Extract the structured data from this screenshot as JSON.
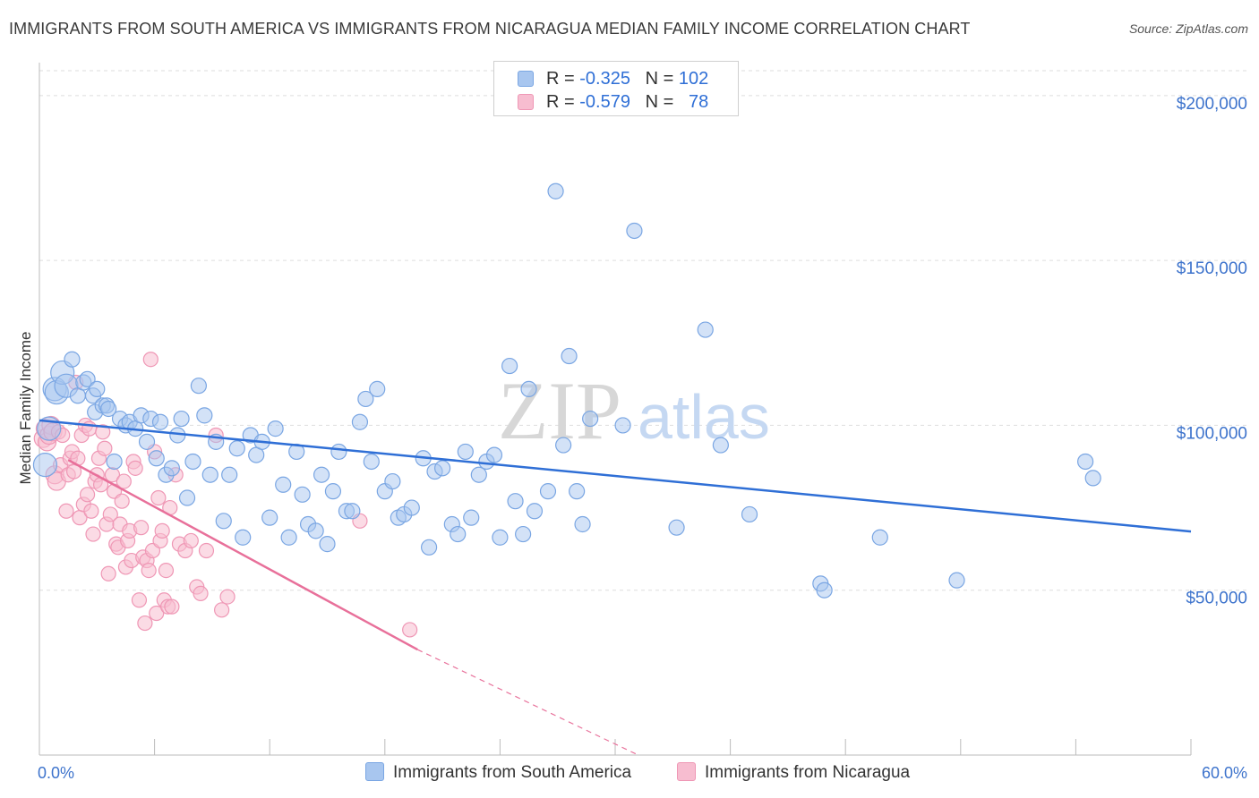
{
  "title": "IMMIGRANTS FROM SOUTH AMERICA VS IMMIGRANTS FROM NICARAGUA MEDIAN FAMILY INCOME CORRELATION CHART",
  "source": "Source: ZipAtlas.com",
  "watermark": {
    "zip": "ZIP",
    "atlas": "atlas"
  },
  "legend_top": {
    "rows": [
      {
        "r_label": "R = ",
        "r_value": "-0.325",
        "n_label": "N = ",
        "n_value": "102"
      },
      {
        "r_label": "R = ",
        "r_value": "-0.579",
        "n_label": "N = ",
        "n_value": "78"
      }
    ]
  },
  "legend_bottom": [
    "Immigrants from South America",
    "Immigrants from Nicaragua"
  ],
  "colors": {
    "blue": "#2f6fd6",
    "blue_fill": "#a8c6ef",
    "blue_edge": "#7aa6e3",
    "pink": "#e8709a",
    "pink_fill": "#f7bdd0",
    "pink_edge": "#ef97b5",
    "axis_value": "#3d73cc",
    "grid": "#dddddd"
  },
  "chart_data": {
    "type": "scatter",
    "title": "IMMIGRANTS FROM SOUTH AMERICA VS IMMIGRANTS FROM NICARAGUA MEDIAN FAMILY INCOME CORRELATION CHART",
    "xlabel": "",
    "ylabel": "Median Family Income",
    "xlim": [
      0,
      60
    ],
    "ylim": [
      0,
      210000
    ],
    "x_tick_labels": [
      "0.0%",
      "60.0%"
    ],
    "y_ticks": [
      50000,
      100000,
      150000,
      200000
    ],
    "y_tick_labels": [
      "$50,000",
      "$100,000",
      "$150,000",
      "$200,000"
    ],
    "grid": true,
    "legend_position": "top-center",
    "series": [
      {
        "name": "Immigrants from South America",
        "r": -0.325,
        "n": 102,
        "trend": {
          "x": [
            0,
            60
          ],
          "y": [
            101500,
            67800
          ]
        },
        "points": [
          [
            0.3,
            88000
          ],
          [
            0.5,
            99000
          ],
          [
            0.8,
            111000
          ],
          [
            0.9,
            110000
          ],
          [
            1.2,
            116000
          ],
          [
            1.4,
            112000
          ],
          [
            1.7,
            120000
          ],
          [
            2.0,
            109000
          ],
          [
            2.3,
            113000
          ],
          [
            2.5,
            114000
          ],
          [
            2.8,
            109000
          ],
          [
            3.0,
            111000
          ],
          [
            2.9,
            104000
          ],
          [
            3.3,
            106000
          ],
          [
            3.5,
            106000
          ],
          [
            3.6,
            105000
          ],
          [
            3.9,
            89000
          ],
          [
            4.2,
            102000
          ],
          [
            4.5,
            100000
          ],
          [
            4.7,
            101000
          ],
          [
            5.0,
            99000
          ],
          [
            5.3,
            103000
          ],
          [
            5.6,
            95000
          ],
          [
            5.8,
            102000
          ],
          [
            6.1,
            90000
          ],
          [
            6.3,
            101000
          ],
          [
            6.6,
            85000
          ],
          [
            6.9,
            87000
          ],
          [
            7.2,
            97000
          ],
          [
            7.4,
            102000
          ],
          [
            7.7,
            78000
          ],
          [
            8.0,
            89000
          ],
          [
            8.3,
            112000
          ],
          [
            8.6,
            103000
          ],
          [
            8.9,
            85000
          ],
          [
            9.2,
            95000
          ],
          [
            9.6,
            71000
          ],
          [
            9.9,
            85000
          ],
          [
            10.3,
            93000
          ],
          [
            10.6,
            66000
          ],
          [
            11.0,
            97000
          ],
          [
            11.3,
            91000
          ],
          [
            11.6,
            95000
          ],
          [
            12.0,
            72000
          ],
          [
            12.3,
            99000
          ],
          [
            12.7,
            82000
          ],
          [
            13.0,
            66000
          ],
          [
            13.4,
            92000
          ],
          [
            13.7,
            79000
          ],
          [
            14.0,
            70000
          ],
          [
            14.4,
            68000
          ],
          [
            14.7,
            85000
          ],
          [
            15.0,
            64000
          ],
          [
            15.3,
            80000
          ],
          [
            15.6,
            92000
          ],
          [
            16.0,
            74000
          ],
          [
            16.3,
            74000
          ],
          [
            16.7,
            101000
          ],
          [
            17.0,
            108000
          ],
          [
            17.3,
            89000
          ],
          [
            17.6,
            111000
          ],
          [
            18.0,
            80000
          ],
          [
            18.4,
            83000
          ],
          [
            18.7,
            72000
          ],
          [
            19.0,
            73000
          ],
          [
            19.4,
            75000
          ],
          [
            20.0,
            90000
          ],
          [
            20.3,
            63000
          ],
          [
            20.6,
            86000
          ],
          [
            21.0,
            87000
          ],
          [
            21.5,
            70000
          ],
          [
            21.8,
            67000
          ],
          [
            22.2,
            92000
          ],
          [
            22.5,
            72000
          ],
          [
            22.9,
            85000
          ],
          [
            23.3,
            89000
          ],
          [
            23.7,
            91000
          ],
          [
            24.0,
            66000
          ],
          [
            24.5,
            118000
          ],
          [
            24.8,
            77000
          ],
          [
            25.2,
            67000
          ],
          [
            25.5,
            111000
          ],
          [
            25.8,
            74000
          ],
          [
            26.5,
            80000
          ],
          [
            26.9,
            171000
          ],
          [
            27.3,
            94000
          ],
          [
            27.6,
            121000
          ],
          [
            28.0,
            80000
          ],
          [
            28.3,
            70000
          ],
          [
            28.7,
            102000
          ],
          [
            30.4,
            100000
          ],
          [
            31.0,
            159000
          ],
          [
            33.2,
            69000
          ],
          [
            34.7,
            129000
          ],
          [
            35.5,
            94000
          ],
          [
            37.0,
            73000
          ],
          [
            40.7,
            52000
          ],
          [
            40.9,
            50000
          ],
          [
            43.8,
            66000
          ],
          [
            47.8,
            53000
          ],
          [
            54.5,
            89000
          ],
          [
            54.9,
            84000
          ]
        ]
      },
      {
        "name": "Immigrants from Nicaragua",
        "r": -0.579,
        "n": 78,
        "trend": {
          "x": [
            1.5,
            19.7
          ],
          "y": [
            89500,
            32000
          ],
          "dashed_to": {
            "x": 31.2,
            "y": -2500
          }
        },
        "points": [
          [
            0.2,
            96000
          ],
          [
            0.3,
            99000
          ],
          [
            0.4,
            95000
          ],
          [
            0.5,
            97000
          ],
          [
            0.6,
            100000
          ],
          [
            0.7,
            98000
          ],
          [
            0.8,
            85000
          ],
          [
            0.9,
            83000
          ],
          [
            1.0,
            98000
          ],
          [
            1.1,
            88000
          ],
          [
            1.2,
            97000
          ],
          [
            1.4,
            74000
          ],
          [
            1.5,
            85000
          ],
          [
            1.6,
            90000
          ],
          [
            1.7,
            92000
          ],
          [
            1.8,
            86000
          ],
          [
            1.9,
            113000
          ],
          [
            2.0,
            90000
          ],
          [
            2.1,
            72000
          ],
          [
            2.2,
            97000
          ],
          [
            2.3,
            76000
          ],
          [
            2.4,
            100000
          ],
          [
            2.5,
            79000
          ],
          [
            2.6,
            99000
          ],
          [
            2.7,
            74000
          ],
          [
            2.8,
            67000
          ],
          [
            2.9,
            83000
          ],
          [
            3.0,
            85000
          ],
          [
            3.1,
            90000
          ],
          [
            3.2,
            82000
          ],
          [
            3.3,
            98000
          ],
          [
            3.4,
            93000
          ],
          [
            3.5,
            70000
          ],
          [
            3.6,
            55000
          ],
          [
            3.7,
            73000
          ],
          [
            3.8,
            85000
          ],
          [
            3.9,
            80000
          ],
          [
            4.0,
            64000
          ],
          [
            4.1,
            63000
          ],
          [
            4.2,
            70000
          ],
          [
            4.3,
            77000
          ],
          [
            4.4,
            83000
          ],
          [
            4.5,
            57000
          ],
          [
            4.6,
            65000
          ],
          [
            4.7,
            68000
          ],
          [
            4.8,
            59000
          ],
          [
            4.9,
            89000
          ],
          [
            5.0,
            87000
          ],
          [
            5.2,
            47000
          ],
          [
            5.3,
            69000
          ],
          [
            5.4,
            60000
          ],
          [
            5.5,
            40000
          ],
          [
            5.6,
            59000
          ],
          [
            5.7,
            56000
          ],
          [
            5.8,
            120000
          ],
          [
            5.9,
            62000
          ],
          [
            6.0,
            92000
          ],
          [
            6.1,
            43000
          ],
          [
            6.2,
            78000
          ],
          [
            6.3,
            65000
          ],
          [
            6.4,
            68000
          ],
          [
            6.5,
            47000
          ],
          [
            6.6,
            56000
          ],
          [
            6.7,
            45000
          ],
          [
            6.8,
            75000
          ],
          [
            6.9,
            45000
          ],
          [
            7.1,
            85000
          ],
          [
            7.3,
            64000
          ],
          [
            7.6,
            62000
          ],
          [
            7.9,
            65000
          ],
          [
            8.2,
            51000
          ],
          [
            8.4,
            49000
          ],
          [
            8.7,
            62000
          ],
          [
            9.2,
            97000
          ],
          [
            9.5,
            44000
          ],
          [
            9.8,
            48000
          ],
          [
            16.7,
            71000
          ],
          [
            19.3,
            38000
          ]
        ]
      }
    ]
  }
}
